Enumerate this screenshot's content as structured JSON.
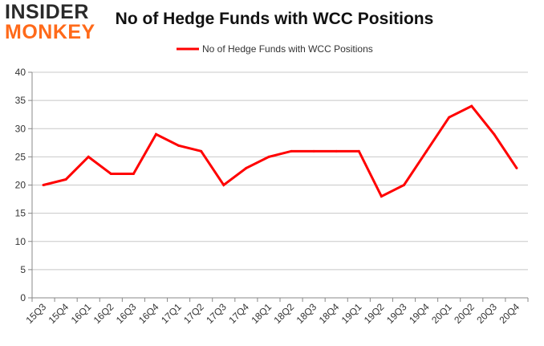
{
  "logo": {
    "line1": "INSIDER",
    "line2": "MONKEY"
  },
  "chart_data": {
    "type": "line",
    "title": "No of Hedge Funds with WCC Positions",
    "xlabel": "",
    "ylabel": "",
    "categories": [
      "15Q3",
      "15Q4",
      "16Q1",
      "16Q2",
      "16Q3",
      "16Q4",
      "17Q1",
      "17Q2",
      "17Q3",
      "17Q4",
      "18Q1",
      "18Q2",
      "18Q3",
      "18Q4",
      "19Q1",
      "19Q2",
      "19Q3",
      "19Q4",
      "20Q1",
      "20Q2",
      "20Q3",
      "20Q4"
    ],
    "series": [
      {
        "name": "No of Hedge Funds with WCC Positions",
        "color": "#ff0000",
        "values": [
          20,
          21,
          25,
          22,
          22,
          29,
          27,
          26,
          20,
          23,
          25,
          26,
          26,
          26,
          26,
          18,
          20,
          26,
          32,
          34,
          29,
          23
        ]
      }
    ],
    "ylim": [
      0,
      40
    ],
    "yticks": [
      0,
      5,
      10,
      15,
      20,
      25,
      30,
      35,
      40
    ],
    "grid": true,
    "legend_position": "top-center"
  }
}
